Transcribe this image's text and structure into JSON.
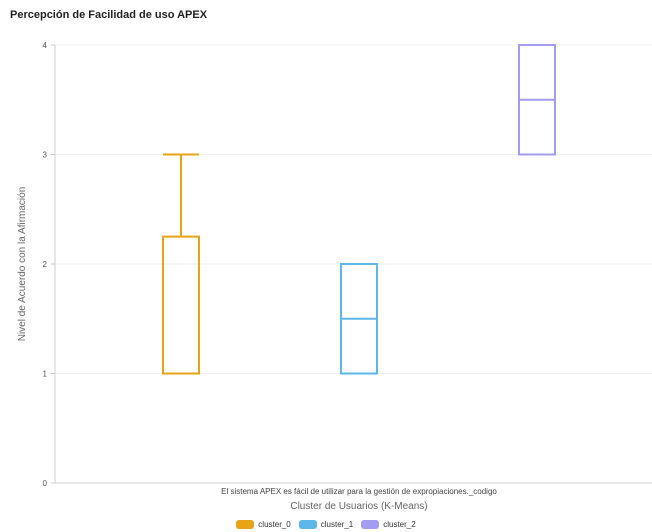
{
  "chart_data": {
    "type": "box",
    "title": "Percepción de Facilidad de uso APEX",
    "xlabel": "Cluster de Usuarios (K-Means)",
    "category_label": "El sistema APEX es fácil de utilizar para la gestión de expropiaciones._codigo",
    "ylabel": "Nivel de Acuerdo con la Afirmación",
    "ylim": [
      0,
      4
    ],
    "yticks": [
      0,
      1,
      2,
      3,
      4
    ],
    "grid": true,
    "legend_position": "bottom-center",
    "series": [
      {
        "name": "cluster_0",
        "color": "#e8a317",
        "min": 1,
        "q1": 1,
        "median": 1,
        "q3": 2.25,
        "max": 3
      },
      {
        "name": "cluster_1",
        "color": "#5db7e8",
        "min": 1,
        "q1": 1,
        "median": 1.5,
        "q3": 2,
        "max": 2
      },
      {
        "name": "cluster_2",
        "color": "#a49cf0",
        "min": 3,
        "q1": 3,
        "median": 3.5,
        "q3": 4,
        "max": 4
      }
    ]
  }
}
